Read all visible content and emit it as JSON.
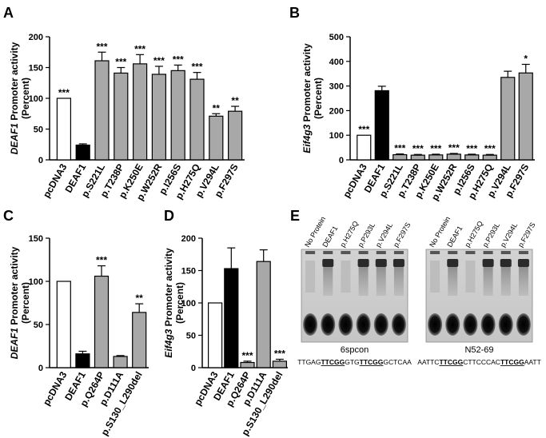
{
  "panels": {
    "A": "A",
    "B": "B",
    "C": "C",
    "D": "D",
    "E": "E"
  },
  "chart_data": [
    {
      "id": "A",
      "type": "bar",
      "ylabel_gene": "DEAF1",
      "ylabel_rest": " Promoter activity",
      "ylabel_unit": "(Percent)",
      "ylim": [
        0,
        200
      ],
      "yticks": [
        "0",
        "50",
        "100",
        "150",
        "200"
      ],
      "categories": [
        "pcDNA3",
        "DEAF1",
        "p.S221L",
        "p.T238P",
        "p.K250E",
        "p.W252R",
        "p.I256S",
        "p.H275Q",
        "p.V294L",
        "p.F297S"
      ],
      "values": [
        100,
        24,
        161,
        141,
        156,
        139,
        145,
        131,
        71,
        79
      ],
      "errors": [
        0,
        2,
        14,
        9,
        15,
        13,
        9,
        11,
        4,
        8
      ],
      "fills": [
        "white",
        "black",
        "gray",
        "gray",
        "gray",
        "gray",
        "gray",
        "gray",
        "gray",
        "gray"
      ],
      "stars": [
        "***",
        "",
        "***",
        "***",
        "***",
        "***",
        "***",
        "***",
        "**",
        "**"
      ]
    },
    {
      "id": "B",
      "type": "bar",
      "ylabel_gene": "Eif4g3",
      "ylabel_rest": " Promoter activity",
      "ylabel_unit": "(Percent)",
      "ylim": [
        0,
        500
      ],
      "yticks": [
        "0",
        "100",
        "200",
        "300",
        "400",
        "500"
      ],
      "categories": [
        "pcDNA3",
        "DEAF1",
        "p.S221L",
        "p.T238P",
        "p.K250E",
        "p.W252R",
        "p.I256S",
        "p.H275Q",
        "p.V294L",
        "p.F297S"
      ],
      "values": [
        100,
        281,
        21,
        19,
        20,
        23,
        20,
        19,
        335,
        353
      ],
      "errors": [
        0,
        18,
        3,
        3,
        3,
        3,
        3,
        3,
        25,
        35
      ],
      "fills": [
        "white",
        "black",
        "gray",
        "gray",
        "gray",
        "gray",
        "gray",
        "gray",
        "gray",
        "gray"
      ],
      "stars": [
        "***",
        "",
        "***",
        "***",
        "***",
        "***",
        "***",
        "***",
        "",
        "*"
      ]
    },
    {
      "id": "C",
      "type": "bar",
      "ylabel_gene": "DEAF1",
      "ylabel_rest": " Promoter activity",
      "ylabel_unit": "(Percent)",
      "ylim": [
        0,
        150
      ],
      "yticks": [
        "0",
        "50",
        "100",
        "150"
      ],
      "categories": [
        "pcDNA3",
        "DEAF1",
        "p.Q264P",
        "p.D111A",
        "p.S130_L290del"
      ],
      "values": [
        100,
        16,
        106,
        13,
        64
      ],
      "errors": [
        0,
        3,
        12,
        1,
        10
      ],
      "fills": [
        "white",
        "black",
        "gray",
        "gray",
        "gray"
      ],
      "stars": [
        "",
        "",
        "***",
        "",
        "**"
      ]
    },
    {
      "id": "D",
      "type": "bar",
      "ylabel_gene": "Eif4g3",
      "ylabel_rest": " Promoter activity",
      "ylabel_unit": "(Percent)",
      "ylim": [
        0,
        200
      ],
      "yticks": [
        "0",
        "50",
        "100",
        "150",
        "200"
      ],
      "categories": [
        "pcDNA3",
        "DEAF1",
        "p.Q264P",
        "p.D111A",
        "p.S130_L290del"
      ],
      "values": [
        100,
        153,
        8,
        164,
        10
      ],
      "errors": [
        0,
        32,
        2,
        18,
        3
      ],
      "fills": [
        "white",
        "black",
        "gray",
        "gray",
        "gray"
      ],
      "stars": [
        "",
        "",
        "***",
        "",
        "***"
      ]
    }
  ],
  "gels": {
    "lane_labels": [
      "No Protein",
      "DEAF1",
      "p.H275Q",
      "p.P293L",
      "p.V294L",
      "p.F297S"
    ],
    "left": {
      "name": "6spcon",
      "seq": [
        {
          "t": "TTGAG",
          "u": false
        },
        {
          "t": "TTCGG",
          "u": true
        },
        {
          "t": "GTG",
          "u": false
        },
        {
          "t": "TTCGG",
          "u": true
        },
        {
          "t": "GCTCAA",
          "u": false
        }
      ],
      "shift": [
        0,
        1,
        0,
        1,
        1,
        1
      ]
    },
    "right": {
      "name": "N52-69",
      "seq": [
        {
          "t": "AATTC",
          "u": false
        },
        {
          "t": "TTCGG",
          "u": true
        },
        {
          "t": "CTTCCCAC",
          "u": false
        },
        {
          "t": "TTCGG",
          "u": true
        },
        {
          "t": "AATT",
          "u": false
        }
      ],
      "shift": [
        0,
        1,
        0,
        1,
        1,
        1
      ]
    }
  }
}
